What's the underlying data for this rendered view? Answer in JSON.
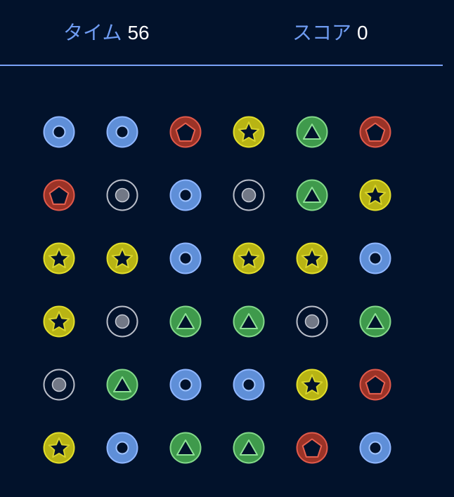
{
  "hud": {
    "time_label": "タイム",
    "time_value": "56",
    "score_label": "スコア",
    "score_value": "0"
  },
  "colors": {
    "background": "#02122b",
    "hud_label": "#6f9cf2",
    "divider": "#7aa2f7"
  },
  "tile_types": {
    "ring": {
      "icon": "ring-icon",
      "fill": "#5f8fd8",
      "stroke": "#8fb6ff",
      "inner_fill": "#02122b",
      "inner_stroke": "#9fc3ff"
    },
    "dot": {
      "icon": "dot-icon",
      "fill": "#02122b",
      "stroke": "#b9bdc8",
      "inner_fill": "#727886",
      "inner_stroke": "#c6cad4"
    },
    "pentagon": {
      "icon": "pentagon-icon",
      "fill": "#9b3327",
      "stroke": "#e0594a",
      "inner_fill": "#02122b",
      "inner_stroke": "#e8604f"
    },
    "star": {
      "icon": "star-icon",
      "fill": "#b8b414",
      "stroke": "#e2de2a",
      "inner_fill": "#02122b",
      "inner_stroke": "#d8d42a"
    },
    "triangle": {
      "icon": "triangle-icon",
      "fill": "#3f9a4c",
      "stroke": "#82d889",
      "inner_fill": "#02122b",
      "inner_stroke": "#8ee296"
    }
  },
  "board": [
    [
      "ring",
      "ring",
      "pentagon",
      "star",
      "triangle",
      "pentagon"
    ],
    [
      "pentagon",
      "dot",
      "ring",
      "dot",
      "triangle",
      "star"
    ],
    [
      "star",
      "star",
      "ring",
      "star",
      "star",
      "ring"
    ],
    [
      "star",
      "dot",
      "triangle",
      "triangle",
      "dot",
      "triangle"
    ],
    [
      "dot",
      "triangle",
      "ring",
      "ring",
      "star",
      "pentagon"
    ],
    [
      "star",
      "ring",
      "triangle",
      "triangle",
      "pentagon",
      "ring"
    ]
  ]
}
